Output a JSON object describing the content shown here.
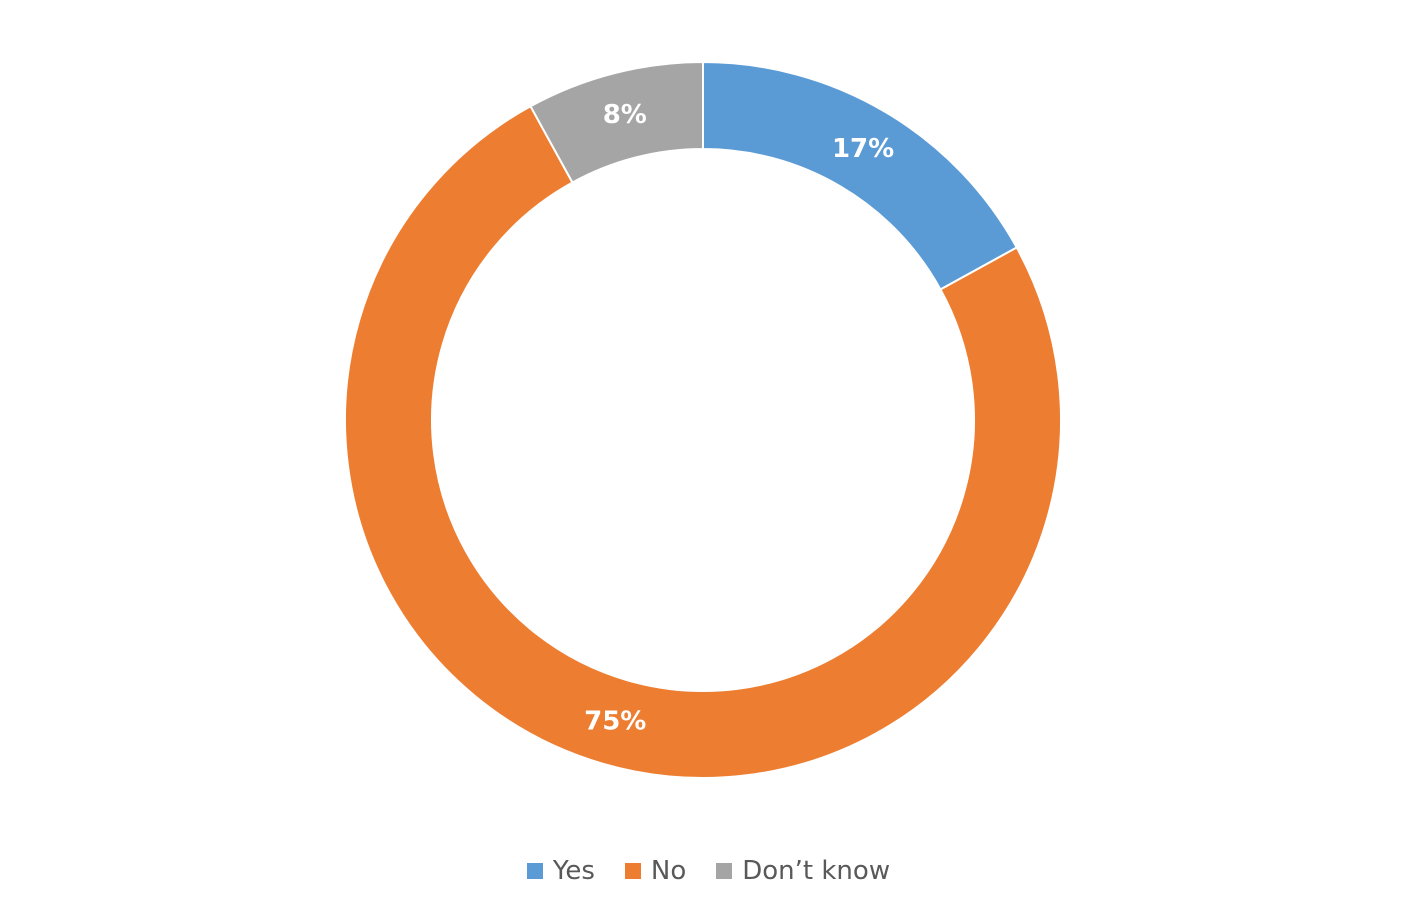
{
  "chart_data": {
    "type": "donut",
    "categories": [
      "Yes",
      "No",
      "Don’t know"
    ],
    "values": [
      17,
      75,
      8
    ],
    "value_labels": [
      "17%",
      "75%",
      "8%"
    ],
    "colors": [
      "#5b9bd5",
      "#ed7d31",
      "#a5a5a5"
    ],
    "legend": "bottom"
  }
}
